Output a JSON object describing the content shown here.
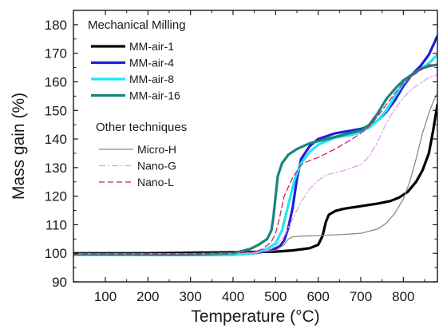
{
  "chart_data": {
    "type": "line",
    "title": "",
    "xlabel": "Temperature (°C)",
    "ylabel": "Mass gain (%)",
    "xlim": [
      25,
      880
    ],
    "ylim": [
      90,
      185
    ],
    "xticks": [
      100,
      200,
      300,
      400,
      500,
      600,
      700,
      800
    ],
    "yticks": [
      90,
      100,
      110,
      120,
      130,
      140,
      150,
      160,
      170,
      180
    ],
    "grid": false,
    "legend_placement": "top-left",
    "legend_groups": [
      {
        "title": "Mechanical Milling",
        "series": [
          "MM-air-1",
          "MM-air-4",
          "MM-air-8",
          "MM-air-16"
        ]
      },
      {
        "title": "Other techniques",
        "series": [
          "Micro-H",
          "Nano-G",
          "Nano-L"
        ]
      }
    ],
    "series": [
      {
        "name": "MM-air-1",
        "color": "#000000",
        "style": "solid",
        "width": "thick",
        "x": [
          25,
          100,
          200,
          300,
          400,
          500,
          540,
          580,
          600,
          610,
          618,
          625,
          640,
          660,
          700,
          740,
          770,
          790,
          810,
          830,
          845,
          860,
          870,
          880
        ],
        "y": [
          100,
          100,
          100,
          100.2,
          100.4,
          100.6,
          101,
          101.8,
          103,
          106,
          111,
          113.5,
          114.8,
          115.6,
          116.5,
          117.4,
          118.3,
          119.5,
          121.5,
          125,
          129,
          135,
          143,
          152
        ]
      },
      {
        "name": "MM-air-4",
        "color": "#1f1fd6",
        "style": "solid",
        "width": "thick",
        "x": [
          25,
          200,
          300,
          400,
          450,
          490,
          510,
          520,
          530,
          540,
          550,
          560,
          580,
          600,
          640,
          680,
          700,
          720,
          740,
          760,
          780,
          800,
          820,
          840,
          860,
          880
        ],
        "y": [
          99.5,
          99.5,
          99.4,
          99.5,
          100,
          101,
          102.5,
          104.5,
          109,
          116,
          126,
          133,
          137.5,
          140,
          142,
          143,
          143.5,
          144.5,
          146.5,
          149.5,
          153.5,
          158.5,
          162.5,
          165.5,
          169.5,
          176
        ]
      },
      {
        "name": "MM-air-8",
        "color": "#21e6f0",
        "style": "solid",
        "width": "thick",
        "x": [
          25,
          200,
          300,
          400,
          450,
          480,
          500,
          515,
          530,
          545,
          560,
          580,
          600,
          640,
          680,
          700,
          720,
          740,
          760,
          780,
          800,
          820,
          840,
          860,
          880
        ],
        "y": [
          99.5,
          99.5,
          99.4,
          99.5,
          100,
          101.5,
          103.5,
          108,
          117,
          126,
          131.5,
          135.5,
          138,
          140.5,
          141.5,
          142.5,
          144,
          146.5,
          150,
          155,
          159.5,
          162.5,
          164.5,
          166.5,
          169.5
        ]
      },
      {
        "name": "MM-air-16",
        "color": "#16857e",
        "style": "solid",
        "width": "thick",
        "x": [
          25,
          200,
          300,
          400,
          440,
          460,
          480,
          490,
          495,
          500,
          505,
          515,
          530,
          550,
          580,
          620,
          660,
          700,
          720,
          740,
          760,
          780,
          800,
          820,
          840,
          860,
          880
        ],
        "y": [
          99.7,
          99.6,
          99.6,
          100,
          101.5,
          103,
          105,
          108,
          113,
          120,
          127,
          131.5,
          134.5,
          136.5,
          138.5,
          140,
          141.5,
          143,
          145,
          149,
          154,
          157.5,
          160.5,
          162.5,
          164.5,
          165.5,
          166
        ]
      },
      {
        "name": "Micro-H",
        "color": "#8c8c8c",
        "style": "solid",
        "width": "thin",
        "x": [
          25,
          200,
          400,
          500,
          520,
          530,
          540,
          560,
          600,
          650,
          700,
          740,
          760,
          780,
          800,
          815,
          830,
          845,
          860,
          870,
          880
        ],
        "y": [
          99.8,
          99.8,
          100,
          101,
          103,
          105,
          105.8,
          106,
          106.2,
          106.5,
          107,
          108.5,
          110.5,
          114,
          119,
          125,
          133,
          142,
          149,
          153,
          156
        ]
      },
      {
        "name": "Nano-G",
        "color": "#e6a0f0",
        "style": "dashdot",
        "width": "thin",
        "x": [
          25,
          200,
          300,
          400,
          450,
          480,
          500,
          520,
          540,
          560,
          580,
          600,
          620,
          660,
          700,
          720,
          740,
          760,
          780,
          800,
          820,
          840,
          860,
          880
        ],
        "y": [
          99.8,
          99.8,
          99.8,
          99.9,
          100.2,
          101,
          102.5,
          106,
          112,
          118,
          122.5,
          125.5,
          127.5,
          129,
          131,
          134,
          139,
          145.5,
          150.5,
          154.5,
          157.5,
          159.5,
          161.5,
          162.5
        ]
      },
      {
        "name": "Nano-L",
        "color": "#d11f6e",
        "style": "dashed",
        "width": "thin",
        "x": [
          25,
          200,
          300,
          400,
          450,
          470,
          490,
          500,
          510,
          520,
          540,
          560,
          580,
          600,
          640,
          680,
          700,
          720,
          740,
          760,
          780,
          800,
          820,
          840,
          860,
          880
        ],
        "y": [
          99.8,
          99.8,
          99.8,
          100,
          100.5,
          101.5,
          104,
          107,
          113,
          120,
          126.5,
          131,
          132.5,
          133.5,
          136.5,
          140,
          142,
          144.5,
          148,
          152,
          156,
          159.5,
          162,
          164,
          166,
          166
        ]
      }
    ]
  }
}
